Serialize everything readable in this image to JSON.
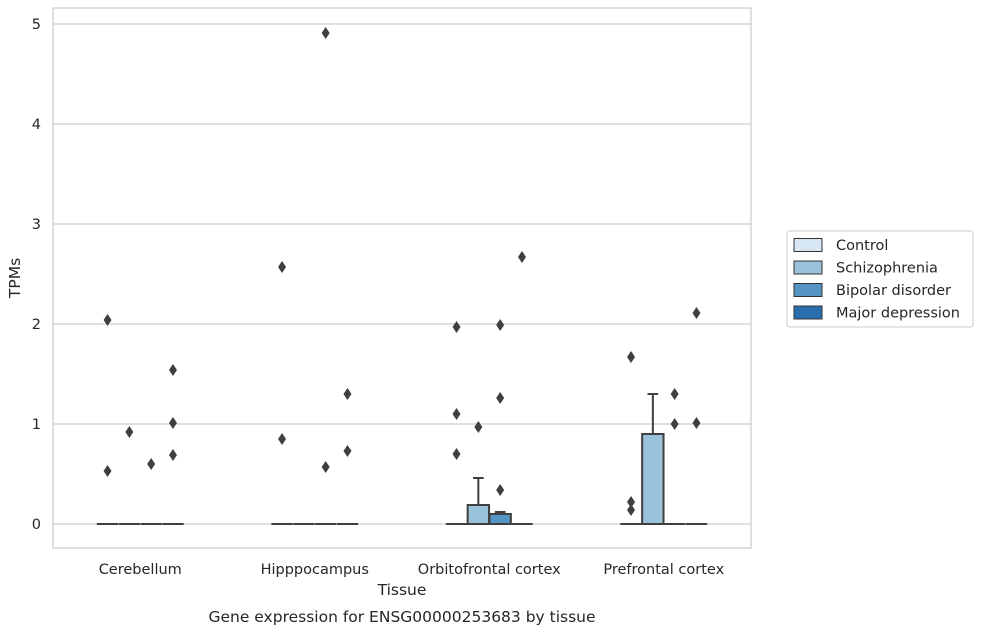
{
  "chart_data": {
    "type": "box",
    "title": "Gene expression for ENSG00000253683 by tissue",
    "xlabel": "Tissue",
    "ylabel": "TPMs",
    "ylim": [
      -0.24,
      5.16
    ],
    "yticks": [
      0,
      1,
      2,
      3,
      4,
      5
    ],
    "grid": "horizontal",
    "legend_position": "right",
    "categories": [
      "Cerebellum",
      "Hipppocampus",
      "Orbitofrontal cortex",
      "Prefrontal cortex"
    ],
    "series": [
      {
        "name": "Control",
        "color": "#d7e6f3",
        "boxes": [
          {
            "q1": 0,
            "median": 0,
            "q3": 0,
            "whisker_low": 0,
            "whisker_high": 0,
            "outliers": [
              0.53,
              2.04
            ]
          },
          {
            "q1": 0,
            "median": 0,
            "q3": 0,
            "whisker_low": 0,
            "whisker_high": 0,
            "outliers": [
              0.85,
              2.57
            ]
          },
          {
            "q1": 0,
            "median": 0,
            "q3": 0,
            "whisker_low": 0,
            "whisker_high": 0,
            "outliers": [
              0.7,
              1.1,
              1.97
            ]
          },
          {
            "q1": 0,
            "median": 0,
            "q3": 0,
            "whisker_low": 0,
            "whisker_high": 0,
            "outliers": [
              0.14,
              0.22,
              1.67
            ]
          }
        ]
      },
      {
        "name": "Schizophrenia",
        "color": "#9ac2da",
        "boxes": [
          {
            "q1": 0,
            "median": 0,
            "q3": 0,
            "whisker_low": 0,
            "whisker_high": 0,
            "outliers": [
              0.92
            ]
          },
          {
            "q1": 0,
            "median": 0,
            "q3": 0,
            "whisker_low": 0,
            "whisker_high": 0,
            "outliers": []
          },
          {
            "q1": 0,
            "median": 0,
            "q3": 0.19,
            "whisker_low": 0,
            "whisker_high": 0.46,
            "outliers": [
              0.97
            ]
          },
          {
            "q1": 0,
            "median": 0,
            "q3": 0.9,
            "whisker_low": 0,
            "whisker_high": 1.3,
            "outliers": []
          }
        ]
      },
      {
        "name": "Bipolar disorder",
        "color": "#5595c3",
        "boxes": [
          {
            "q1": 0,
            "median": 0,
            "q3": 0,
            "whisker_low": 0,
            "whisker_high": 0,
            "outliers": [
              0.6
            ]
          },
          {
            "q1": 0,
            "median": 0,
            "q3": 0,
            "whisker_low": 0,
            "whisker_high": 0,
            "outliers": [
              0.57,
              4.91
            ]
          },
          {
            "q1": 0,
            "median": 0,
            "q3": 0.1,
            "whisker_low": 0,
            "whisker_high": 0.12,
            "outliers": [
              0.34,
              1.26,
              1.99
            ]
          },
          {
            "q1": 0,
            "median": 0,
            "q3": 0,
            "whisker_low": 0,
            "whisker_high": 0,
            "outliers": [
              1.0,
              1.3
            ]
          }
        ]
      },
      {
        "name": "Major depression",
        "color": "#2a6eaf",
        "boxes": [
          {
            "q1": 0,
            "median": 0,
            "q3": 0,
            "whisker_low": 0,
            "whisker_high": 0,
            "outliers": [
              0.69,
              1.01,
              1.54
            ]
          },
          {
            "q1": 0,
            "median": 0,
            "q3": 0,
            "whisker_low": 0,
            "whisker_high": 0,
            "outliers": [
              0.73,
              1.3
            ]
          },
          {
            "q1": 0,
            "median": 0,
            "q3": 0,
            "whisker_low": 0,
            "whisker_high": 0,
            "outliers": [
              2.67
            ]
          },
          {
            "q1": 0,
            "median": 0,
            "q3": 0,
            "whisker_low": 0,
            "whisker_high": 0,
            "outliers": [
              1.01,
              2.11
            ]
          }
        ]
      }
    ]
  }
}
